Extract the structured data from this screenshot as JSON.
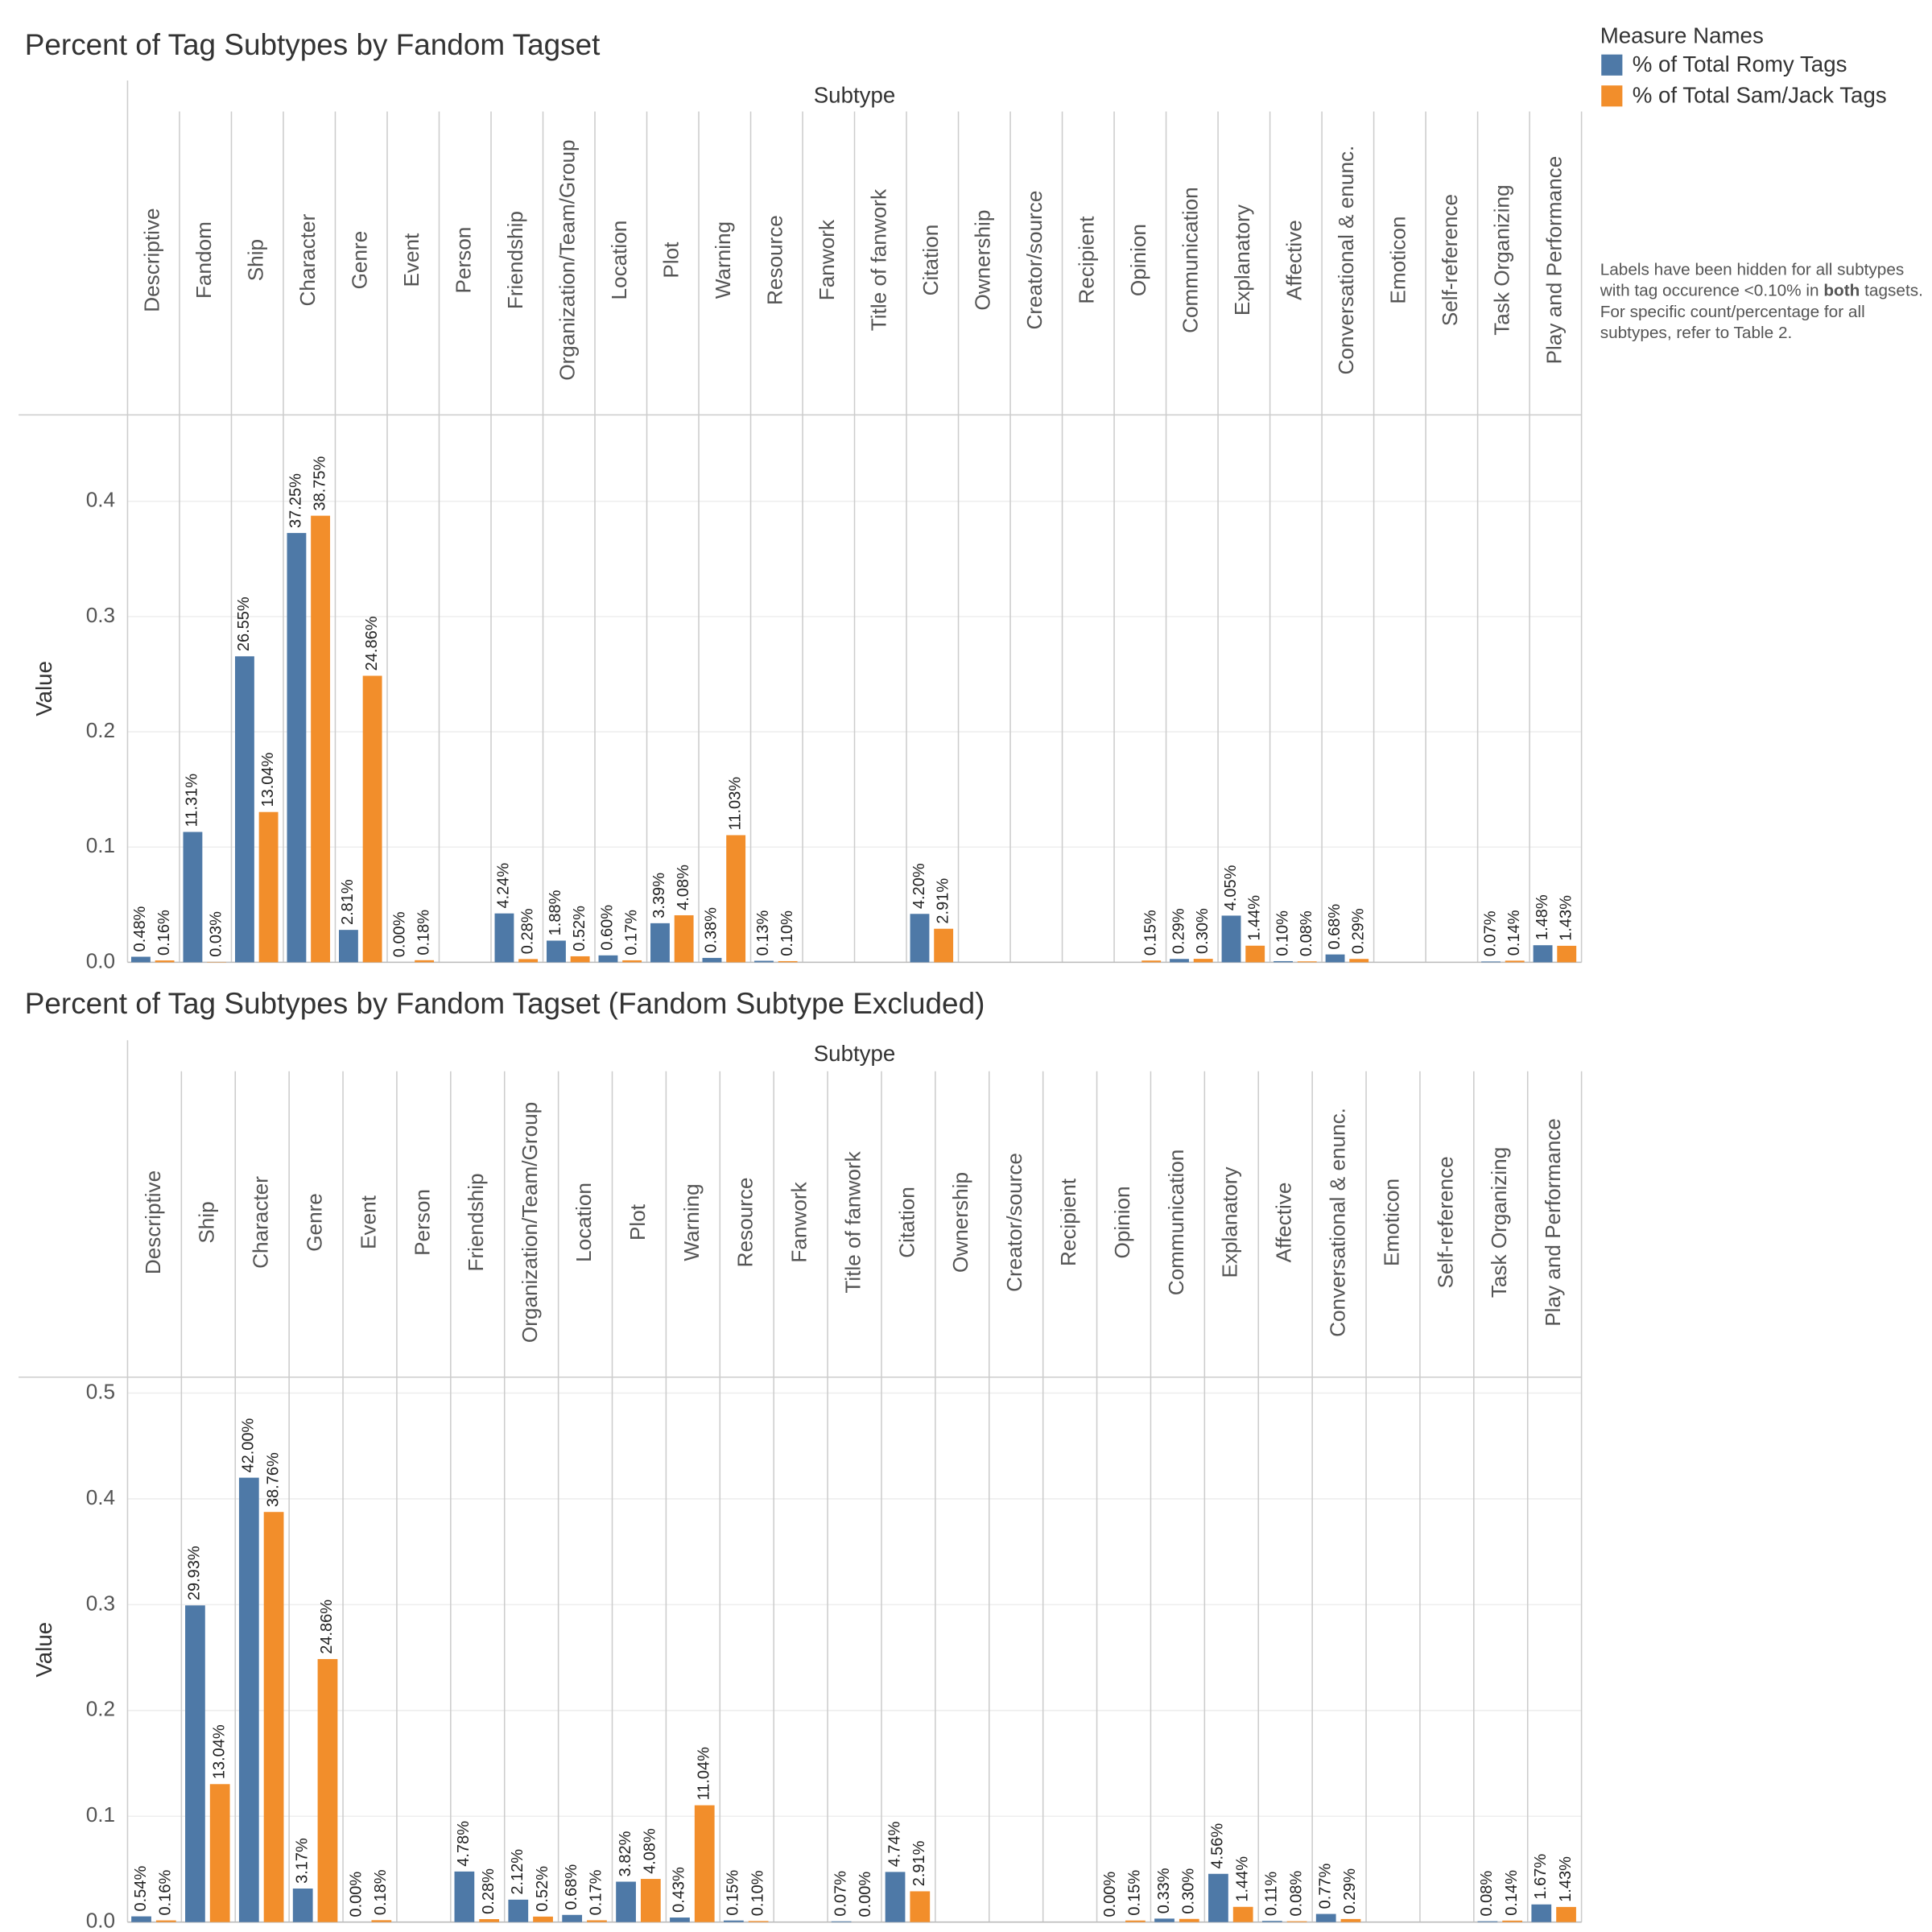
{
  "chart_data": [
    {
      "type": "bar",
      "title": "Percent of Tag Subtypes by Fandom Tagset",
      "x_label": "Subtype",
      "y_label": "Value",
      "categories": [
        "Descriptive",
        "Fandom",
        "Ship",
        "Character",
        "Genre",
        "Event",
        "Person",
        "Friendship",
        "Organization/Team/Group",
        "Location",
        "Plot",
        "Warning",
        "Resource",
        "Fanwork",
        "Title of fanwork",
        "Citation",
        "Ownership",
        "Creator/source",
        "Recipient",
        "Opinion",
        "Communication",
        "Explanatory",
        "Affective",
        "Conversational & enunc.",
        "Emoticon",
        "Self-reference",
        "Task Organizing",
        "Play and Performance"
      ],
      "series": [
        {
          "name": "% of Total Romy Tags",
          "color": "#4e79a7",
          "values": [
            0.0048,
            0.1131,
            0.2655,
            0.3725,
            0.0281,
            0.0,
            null,
            0.0424,
            0.0188,
            0.006,
            0.0339,
            0.0038,
            0.0013,
            null,
            null,
            0.042,
            null,
            null,
            null,
            null,
            0.0029,
            0.0405,
            0.001,
            0.0068,
            null,
            null,
            0.0007,
            0.0148
          ],
          "value_labels": [
            "0.48%",
            "11.31%",
            "26.55%",
            "37.25%",
            "2.81%",
            "0.00%",
            null,
            "4.24%",
            "1.88%",
            "0.60%",
            "3.39%",
            "0.38%",
            "0.13%",
            null,
            null,
            "4.20%",
            null,
            null,
            null,
            null,
            "0.29%",
            "4.05%",
            "0.10%",
            "0.68%",
            null,
            null,
            "0.07%",
            "1.48%"
          ]
        },
        {
          "name": "% of Total Sam/Jack Tags",
          "color": "#f28e2b",
          "values": [
            0.0016,
            0.0003,
            0.1304,
            0.3875,
            0.2486,
            0.0018,
            null,
            0.0028,
            0.0052,
            0.0017,
            0.0408,
            0.1103,
            0.001,
            null,
            null,
            0.0291,
            null,
            null,
            null,
            0.0015,
            0.003,
            0.0144,
            0.0008,
            0.0029,
            null,
            null,
            0.0014,
            0.0143
          ],
          "value_labels": [
            "0.16%",
            "0.03%",
            "13.04%",
            "38.75%",
            "24.86%",
            "0.18%",
            null,
            "0.28%",
            "0.52%",
            "0.17%",
            "4.08%",
            "11.03%",
            "0.10%",
            null,
            null,
            "2.91%",
            null,
            null,
            null,
            "0.15%",
            "0.30%",
            "1.44%",
            "0.08%",
            "0.29%",
            null,
            null,
            "0.14%",
            "1.43%"
          ]
        }
      ],
      "ylim": [
        0,
        0.475
      ],
      "yticks": [
        {
          "value": 0,
          "label": "0.0"
        },
        0.1,
        0.2,
        0.3,
        0.4
      ],
      "grid": true,
      "legend": {
        "title": "Measure Names",
        "position": "right"
      },
      "note": {
        "before": "Labels have been hidden for all subtypes with tag occurence <0.10% in ",
        "bold": "both",
        "after": " tagsets. For specific count/percentage for all subtypes, refer to Table 2."
      }
    },
    {
      "type": "bar",
      "title": "Percent of Tag Subtypes by Fandom Tagset (Fandom Subtype Excluded)",
      "x_label": "Subtype",
      "y_label": "Value",
      "categories": [
        "Descriptive",
        "Ship",
        "Character",
        "Genre",
        "Event",
        "Person",
        "Friendship",
        "Organization/Team/Group",
        "Location",
        "Plot",
        "Warning",
        "Resource",
        "Fanwork",
        "Title of fanwork",
        "Citation",
        "Ownership",
        "Creator/source",
        "Recipient",
        "Opinion",
        "Communication",
        "Explanatory",
        "Affective",
        "Conversational & enunc.",
        "Emoticon",
        "Self-reference",
        "Task Organizing",
        "Play and Performance"
      ],
      "series": [
        {
          "color": "#4e79a7",
          "values": [
            0.0054,
            0.2993,
            0.42,
            0.0317,
            0.0,
            null,
            0.0478,
            0.0212,
            0.0068,
            0.0382,
            0.0043,
            0.0015,
            null,
            0.0007,
            0.0474,
            null,
            null,
            null,
            0.0,
            0.0033,
            0.0456,
            0.0011,
            0.0077,
            null,
            null,
            0.0008,
            0.0167
          ],
          "value_labels": [
            "0.54%",
            "29.93%",
            "42.00%",
            "3.17%",
            "0.00%",
            null,
            "4.78%",
            "2.12%",
            "0.68%",
            "3.82%",
            "0.43%",
            "0.15%",
            null,
            "0.07%",
            "4.74%",
            null,
            null,
            null,
            "0.00%",
            "0.33%",
            "4.56%",
            "0.11%",
            "0.77%",
            null,
            null,
            "0.08%",
            "1.67%"
          ]
        },
        {
          "color": "#f28e2b",
          "values": [
            0.0016,
            0.1304,
            0.3876,
            0.2486,
            0.0018,
            null,
            0.0028,
            0.0052,
            0.0017,
            0.0408,
            0.1104,
            0.001,
            null,
            0.0,
            0.0291,
            null,
            null,
            null,
            0.0015,
            0.003,
            0.0144,
            0.0008,
            0.0029,
            null,
            null,
            0.0014,
            0.0143
          ],
          "value_labels": [
            "0.16%",
            "13.04%",
            "38.76%",
            "24.86%",
            "0.18%",
            null,
            "0.28%",
            "0.52%",
            "0.17%",
            "4.08%",
            "11.04%",
            "0.10%",
            null,
            "0.00%",
            "2.91%",
            null,
            null,
            null,
            "0.15%",
            "0.30%",
            "1.44%",
            "0.08%",
            "0.29%",
            null,
            null,
            "0.14%",
            "1.43%"
          ]
        }
      ],
      "ylim": [
        0,
        0.515
      ],
      "yticks": [
        {
          "value": 0,
          "label": "0.0"
        },
        0.1,
        0.2,
        0.3,
        0.4,
        0.5
      ],
      "grid": true
    }
  ]
}
